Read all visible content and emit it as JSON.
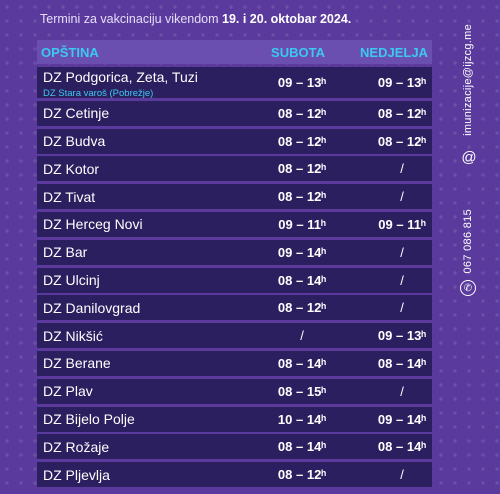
{
  "header": {
    "prefix": "Termini za vakcinaciju vikendom ",
    "dates": "19. i 20. oktobar 2024."
  },
  "columns": {
    "name": "OPŠTINA",
    "saturday": "SUBOTA",
    "sunday": "NEDJELJA"
  },
  "rows": [
    {
      "name": "DZ Podgorica, Zeta, Tuzi",
      "sub": "DZ Stara varoš (Pobrežje)",
      "sat": "09 – 13ʰ",
      "sun": "09 – 13ʰ"
    },
    {
      "name": "DZ Cetinje",
      "sat": "08 – 12ʰ",
      "sun": "08 – 12ʰ"
    },
    {
      "name": "DZ Budva",
      "sat": "08 – 12ʰ",
      "sun": "08 – 12ʰ"
    },
    {
      "name": "DZ Kotor",
      "sat": "08 – 12ʰ",
      "sun": "/"
    },
    {
      "name": "DZ Tivat",
      "sat": "08 – 12ʰ",
      "sun": "/"
    },
    {
      "name": "DZ Herceg Novi",
      "sat": "09 – 11ʰ",
      "sun": "09 – 11ʰ"
    },
    {
      "name": "DZ Bar",
      "sat": "09 – 14ʰ",
      "sun": "/"
    },
    {
      "name": "DZ Ulcinj",
      "sat": "08 – 14ʰ",
      "sun": "/"
    },
    {
      "name": "DZ Danilovgrad",
      "sat": "08 – 12ʰ",
      "sun": "/"
    },
    {
      "name": "DZ Nikšić",
      "sat": "/",
      "sun": "09 – 13ʰ"
    },
    {
      "name": "DZ Berane",
      "sat": "08 – 14ʰ",
      "sun": "08 – 14ʰ"
    },
    {
      "name": "DZ Plav",
      "sat": "08 – 15ʰ",
      "sun": "/"
    },
    {
      "name": "DZ Bijelo Polje",
      "sat": "10 – 14ʰ",
      "sun": "09 – 14ʰ"
    },
    {
      "name": "DZ Rožaje",
      "sat": "08 – 14ʰ",
      "sun": "08 – 14ʰ"
    },
    {
      "name": "DZ Pljevlja",
      "sat": "08 – 12ʰ",
      "sun": "/"
    }
  ],
  "contact": {
    "email": "imunizacije@ijzcg.me",
    "phone": "067 086 815",
    "email_icon": "at-icon",
    "phone_icon": "phone-icon"
  },
  "colors": {
    "background": "#5a3a9c",
    "row": "#2c1f5f",
    "accent": "#3cc8f0"
  }
}
